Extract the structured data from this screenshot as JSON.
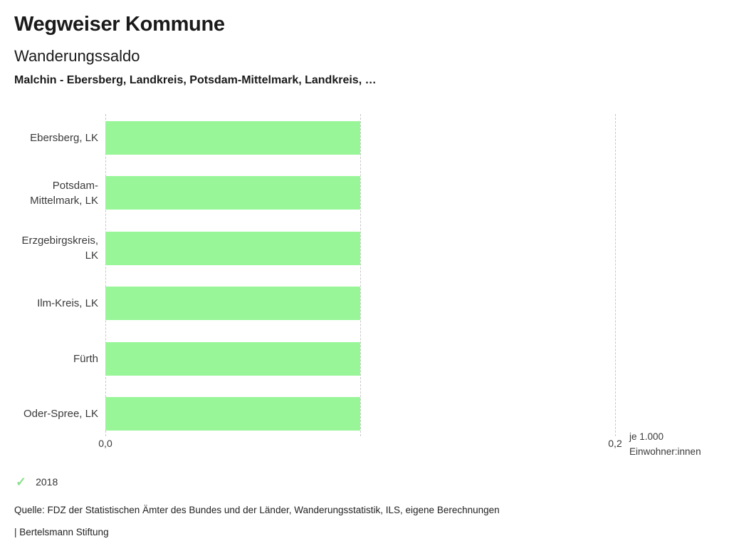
{
  "header": {
    "app_title": "Wegweiser Kommune",
    "chart_title": "Wanderungssaldo",
    "chart_subtitle": "Malchin - Ebersberg, Landkreis, Potsdam-Mittelmark, Landkreis, …"
  },
  "chart_data": {
    "type": "bar",
    "orientation": "horizontal",
    "title": "Wanderungssaldo",
    "categories": [
      "Ebersberg, LK",
      "Potsdam-Mittelmark, LK",
      "Erzgebirgskreis, LK",
      "Ilm-Kreis, LK",
      "Fürth",
      "Oder-Spree, LK"
    ],
    "series": [
      {
        "name": "2018",
        "values": [
          0.1,
          0.1,
          0.1,
          0.1,
          0.1,
          0.1
        ]
      }
    ],
    "xlim": [
      0,
      0.2
    ],
    "x_ticks": [
      {
        "value": 0.0,
        "label": "0,0"
      },
      {
        "value": 0.2,
        "label": "0,2"
      }
    ],
    "x_gridlines": [
      0.0,
      0.1,
      0.2
    ],
    "unit_label_line1": "je 1.000",
    "unit_label_line2": "Einwohner:innen",
    "bar_color": "#98f698",
    "gridline_color": "#c8c8c8",
    "grid": true,
    "legend_position": "bottom-left"
  },
  "legend": {
    "items": [
      {
        "label": "2018",
        "marker": "check-icon",
        "marker_glyph": "✓",
        "color": "#8ce08c"
      }
    ]
  },
  "footer": {
    "source": "Quelle: FDZ der Statistischen Ämter des Bundes und der Länder, Wanderungsstatistik, ILS, eigene Berechnungen",
    "attribution": "| Bertelsmann Stiftung"
  }
}
